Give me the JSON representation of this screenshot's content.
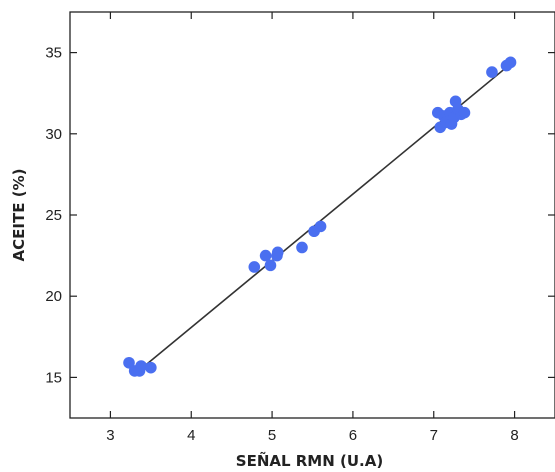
{
  "chart_data": {
    "type": "scatter",
    "title": "",
    "xlabel": "SEÑAL RMN (U.A)",
    "ylabel": "ACEITE (%)",
    "xlim": [
      2.5,
      8.5
    ],
    "ylim": [
      12.5,
      37.5
    ],
    "xticks": [
      3,
      4,
      5,
      6,
      7,
      8
    ],
    "yticks": [
      15,
      20,
      25,
      30,
      35
    ],
    "xtick_labels": [
      "3",
      "4",
      "5",
      "6",
      "7",
      "8"
    ],
    "ytick_labels": [
      "15",
      "20",
      "25",
      "30",
      "35"
    ],
    "grid": false,
    "legend": "none",
    "point_color": "#4a6ff0",
    "line_color": "#333333",
    "series": [
      {
        "type": "scatter",
        "points": [
          {
            "x": 3.23,
            "y": 15.9
          },
          {
            "x": 3.3,
            "y": 15.4
          },
          {
            "x": 3.36,
            "y": 15.4
          },
          {
            "x": 3.38,
            "y": 15.7
          },
          {
            "x": 3.5,
            "y": 15.6
          },
          {
            "x": 4.78,
            "y": 21.8
          },
          {
            "x": 4.92,
            "y": 22.5
          },
          {
            "x": 4.98,
            "y": 21.9
          },
          {
            "x": 5.06,
            "y": 22.5
          },
          {
            "x": 5.07,
            "y": 22.7
          },
          {
            "x": 5.37,
            "y": 23.0
          },
          {
            "x": 5.52,
            "y": 24.0
          },
          {
            "x": 5.6,
            "y": 24.3
          },
          {
            "x": 7.05,
            "y": 31.3
          },
          {
            "x": 7.08,
            "y": 30.4
          },
          {
            "x": 7.12,
            "y": 31.1
          },
          {
            "x": 7.15,
            "y": 30.7
          },
          {
            "x": 7.2,
            "y": 31.3
          },
          {
            "x": 7.22,
            "y": 30.6
          },
          {
            "x": 7.25,
            "y": 31.0
          },
          {
            "x": 7.27,
            "y": 32.0
          },
          {
            "x": 7.3,
            "y": 31.5
          },
          {
            "x": 7.34,
            "y": 31.2
          },
          {
            "x": 7.38,
            "y": 31.3
          },
          {
            "x": 7.72,
            "y": 33.8
          },
          {
            "x": 7.9,
            "y": 34.2
          },
          {
            "x": 7.95,
            "y": 34.4
          }
        ]
      },
      {
        "type": "line",
        "x": [
          3.3,
          7.95
        ],
        "y": [
          15.2,
          34.3
        ]
      }
    ]
  }
}
